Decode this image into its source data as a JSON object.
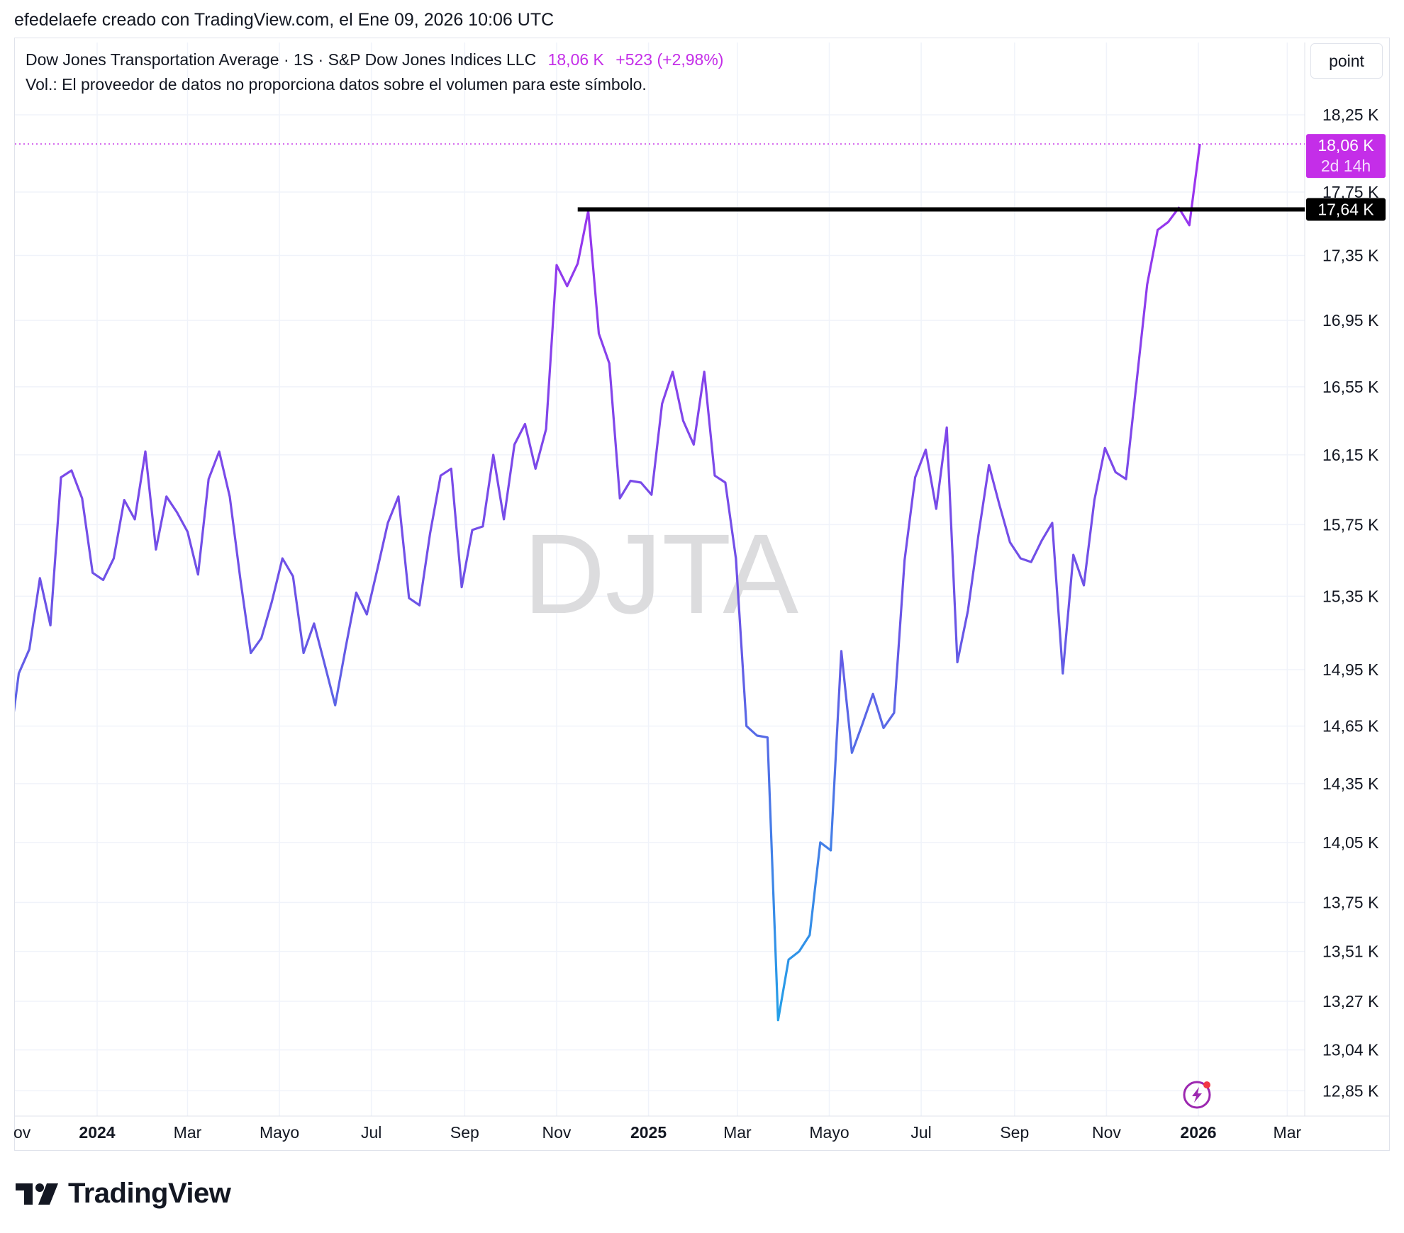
{
  "header": {
    "created_by": "efedelaefe creado con TradingView.com, el Ene 09, 2026 10:06 UTC"
  },
  "legend": {
    "symbol": "Dow Jones Transportation Average · 1S · S&P Dow Jones Indices LLC",
    "last": "18,06 K",
    "change": "+523 (+2,98%)",
    "volume_note": "Vol.: El proveedor de datos no proporciona datos sobre el volumen para este símbolo."
  },
  "toolbar": {
    "scale_label": "point"
  },
  "watermark": "DJTA",
  "brand": {
    "name": "TradingView"
  },
  "colors": {
    "accent": "#c42ee8",
    "line_top": "#a22ff0",
    "line_bottom": "#21a3e8",
    "resistance": "#000000"
  },
  "chart_data": {
    "type": "line",
    "x_start": "2023-11-03",
    "x_step": "1 week",
    "xticks": [
      {
        "label": "ov",
        "date": "2023-11-01"
      },
      {
        "label": "2024",
        "date": "2024-01-01"
      },
      {
        "label": "Mar",
        "date": "2024-03-01"
      },
      {
        "label": "Mayo",
        "date": "2024-05-01"
      },
      {
        "label": "Jul",
        "date": "2024-07-01"
      },
      {
        "label": "Sep",
        "date": "2024-09-01"
      },
      {
        "label": "Nov",
        "date": "2024-11-01"
      },
      {
        "label": "2025",
        "date": "2025-01-01"
      },
      {
        "label": "Mar",
        "date": "2025-03-01"
      },
      {
        "label": "Mayo",
        "date": "2025-05-01"
      },
      {
        "label": "Jul",
        "date": "2025-07-01"
      },
      {
        "label": "Sep",
        "date": "2025-09-01"
      },
      {
        "label": "Nov",
        "date": "2025-11-01"
      },
      {
        "label": "2026",
        "date": "2026-01-01"
      },
      {
        "label": "Mar",
        "date": "2026-03-01"
      }
    ],
    "yticks": [
      {
        "label": "12,85 K",
        "value": 12850
      },
      {
        "label": "13,04 K",
        "value": 13040
      },
      {
        "label": "13,27 K",
        "value": 13270
      },
      {
        "label": "13,51 K",
        "value": 13510
      },
      {
        "label": "13,75 K",
        "value": 13750
      },
      {
        "label": "14,05 K",
        "value": 14050
      },
      {
        "label": "14,35 K",
        "value": 14350
      },
      {
        "label": "14,65 K",
        "value": 14650
      },
      {
        "label": "14,95 K",
        "value": 14950
      },
      {
        "label": "15,35 K",
        "value": 15350
      },
      {
        "label": "15,75 K",
        "value": 15750
      },
      {
        "label": "16,15 K",
        "value": 16150
      },
      {
        "label": "16,55 K",
        "value": 16550
      },
      {
        "label": "16,95 K",
        "value": 16950
      },
      {
        "label": "17,35 K",
        "value": 17350
      },
      {
        "label": "17,75 K",
        "value": 17750
      },
      {
        "label": "18,25 K",
        "value": 18250
      }
    ],
    "scale": "log",
    "grid": true,
    "series": [
      {
        "values": [
          14500,
          14930,
          15060,
          15450,
          15190,
          16020,
          16060,
          15900,
          15480,
          15440,
          15560,
          15890,
          15780,
          16170,
          15610,
          15910,
          15820,
          15710,
          15470,
          16010,
          16170,
          15910,
          15450,
          15040,
          15120,
          15320,
          15560,
          15460,
          15040,
          15200,
          14980,
          14760,
          15070,
          15370,
          15250,
          15500,
          15760,
          15910,
          15340,
          15300,
          15700,
          16030,
          16070,
          15400,
          15720,
          15740,
          16150,
          15780,
          16210,
          16330,
          16070,
          16300,
          17290,
          17160,
          17300,
          17630,
          16870,
          16690,
          15900,
          16000,
          15990,
          15920,
          16450,
          16640,
          16350,
          16210,
          16640,
          16030,
          15990,
          15560,
          14650,
          14600,
          14590,
          13180,
          13470,
          13510,
          13590,
          14050,
          14010,
          15050,
          14510,
          14660,
          14820,
          14640,
          14720,
          15550,
          16020,
          16180,
          15840,
          16310,
          14990,
          15270,
          15690,
          16090,
          15860,
          15650,
          15560,
          15540,
          15660,
          15760,
          14930,
          15580,
          15410,
          15890,
          16190,
          16050,
          16010,
          16580,
          17170,
          17510,
          17560,
          17650,
          17540,
          18060
        ],
        "color_top": "#a22ff0",
        "color_bottom": "#21a3e8"
      }
    ],
    "horizontal_lines": [
      {
        "value": 17640,
        "label": "17,64 K",
        "from_date": "2024-11-15",
        "color": "#000000"
      }
    ],
    "last_price": {
      "value": 18060,
      "label": "18,06 K",
      "countdown": "2d 14h",
      "color": "#c42ee8"
    }
  }
}
